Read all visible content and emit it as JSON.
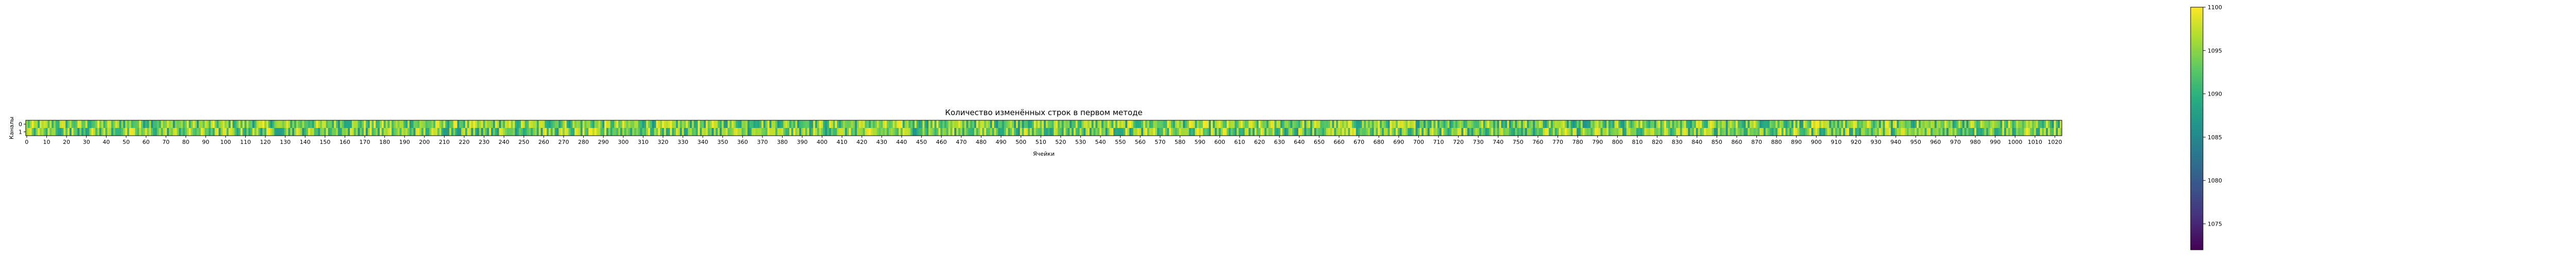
{
  "chart_data": {
    "type": "heatmap",
    "title": "Количество изменённых строк в первом методе",
    "xlabel": "Ячейки",
    "ylabel": "Каналы",
    "x_range": [
      0,
      1023
    ],
    "y_range": [
      0,
      1
    ],
    "y_ticks": [
      0,
      1
    ],
    "x_ticks": [
      0,
      10,
      20,
      30,
      40,
      50,
      60,
      70,
      80,
      90,
      100,
      110,
      120,
      130,
      140,
      150,
      160,
      170,
      180,
      190,
      200,
      210,
      220,
      230,
      240,
      250,
      260,
      270,
      280,
      290,
      300,
      310,
      320,
      330,
      340,
      350,
      360,
      370,
      380,
      390,
      400,
      410,
      420,
      430,
      440,
      450,
      460,
      470,
      480,
      490,
      500,
      510,
      520,
      530,
      540,
      550,
      560,
      570,
      580,
      590,
      600,
      610,
      620,
      630,
      640,
      650,
      660,
      670,
      680,
      690,
      700,
      710,
      720,
      730,
      740,
      750,
      760,
      770,
      780,
      790,
      800,
      810,
      820,
      830,
      840,
      850,
      860,
      870,
      880,
      890,
      900,
      910,
      920,
      930,
      940,
      950,
      960,
      970,
      980,
      990,
      1000,
      1010,
      1020
    ],
    "colorbar": {
      "colormap": "viridis",
      "range": [
        1072,
        1100
      ],
      "ticks": [
        1075,
        1080,
        1085,
        1090,
        1095,
        1100
      ]
    },
    "value_range_observed": [
      1086,
      1100
    ],
    "grid": false
  }
}
